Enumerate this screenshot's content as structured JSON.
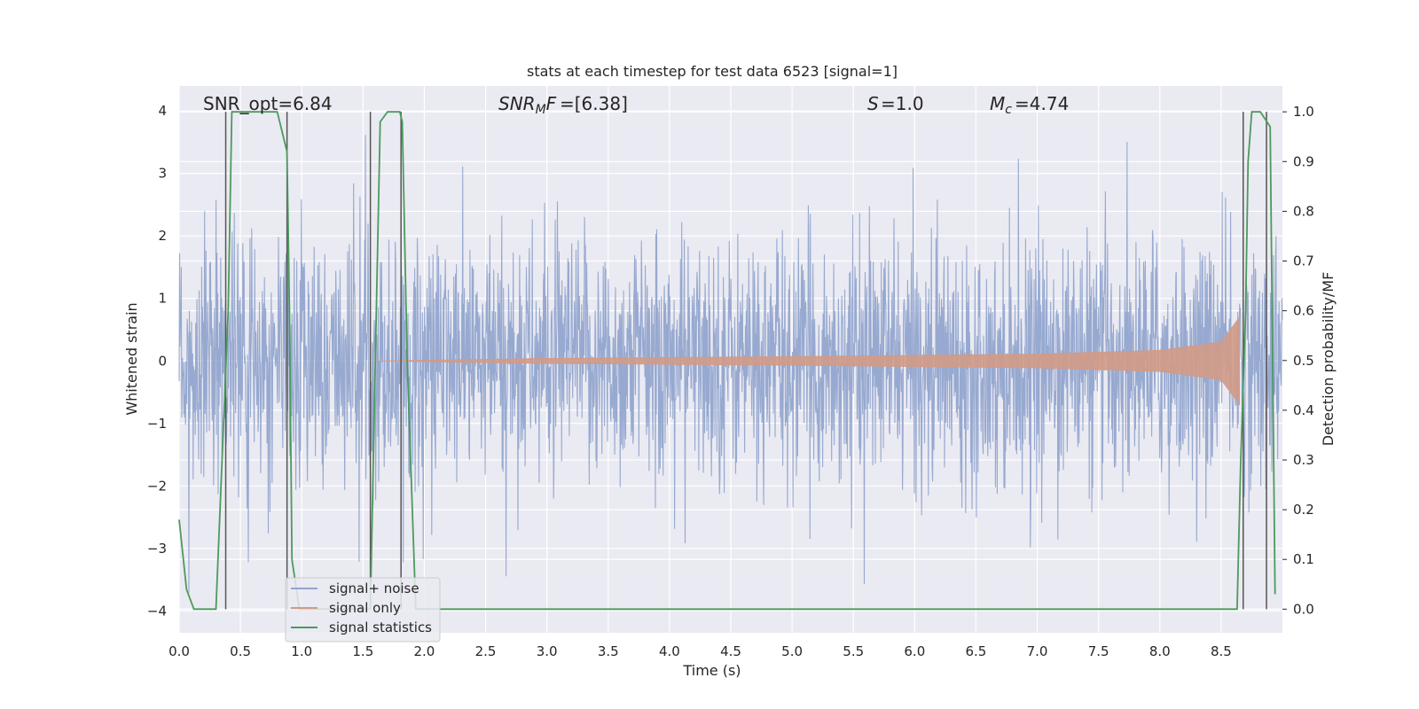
{
  "chart_data": {
    "type": "line",
    "title": "stats at each timestep for test data 6523 [signal=1]",
    "xlabel": "Time (s)",
    "ylabel": "Whitened strain",
    "y2label": "Detection probability/MF",
    "xlim": [
      0.0,
      9.0
    ],
    "ylim": [
      -4.35,
      4.4
    ],
    "y2lim": [
      -0.0475,
      1.052
    ],
    "xticks": [
      "0.0",
      "0.5",
      "1.0",
      "1.5",
      "2.0",
      "2.5",
      "3.0",
      "3.5",
      "4.0",
      "4.5",
      "5.0",
      "5.5",
      "6.0",
      "6.5",
      "7.0",
      "7.5",
      "8.0",
      "8.5"
    ],
    "yticks": [
      "4",
      "3",
      "2",
      "1",
      "0",
      "−1",
      "−2",
      "−3",
      "−4"
    ],
    "y2ticks": [
      "1.0",
      "0.9",
      "0.8",
      "0.7",
      "0.6",
      "0.5",
      "0.4",
      "0.3",
      "0.2",
      "0.1",
      "0.0"
    ],
    "grid": true,
    "legend_position": "lower-left",
    "annotations": {
      "snr_opt": "SNR_opt=6.84",
      "snr_mf": "=[6.38]",
      "s": "=1.0",
      "mc": "=4.74"
    },
    "series": [
      {
        "name": "signal+ noise",
        "color": "#92a5ce",
        "axis": "left",
        "note": "whitened noisy strain, approximately gaussian, envelope about ±1.6 with spikes to ±4",
        "amplitude_envelope": 1.6
      },
      {
        "name": "signal only",
        "color": "#d19a86",
        "axis": "left",
        "note": "chirp envelope grows from ~0 at 1.6 s to ~0.7 at 8.65 s",
        "envelope": {
          "x": [
            1.6,
            3.0,
            5.0,
            7.0,
            8.0,
            8.5,
            8.65
          ],
          "y": [
            0.0,
            0.04,
            0.07,
            0.11,
            0.17,
            0.3,
            0.7
          ]
        }
      },
      {
        "name": "signal statistics",
        "color": "#4c9a5c",
        "axis": "right",
        "x": [
          0.0,
          0.06,
          0.12,
          0.3,
          0.4,
          0.43,
          0.8,
          0.88,
          0.9,
          0.92,
          0.98,
          1.56,
          1.6,
          1.64,
          1.7,
          1.8,
          1.82,
          1.86,
          1.93,
          8.63,
          8.66,
          8.7,
          8.72,
          8.75,
          8.82,
          8.9,
          8.94
        ],
        "y": [
          0.18,
          0.04,
          0.0,
          0.0,
          0.6,
          1.0,
          1.0,
          0.92,
          0.6,
          0.1,
          0.0,
          0.0,
          0.5,
          0.98,
          1.0,
          1.0,
          0.98,
          0.5,
          0.0,
          0.0,
          0.3,
          0.6,
          0.9,
          1.0,
          1.0,
          0.97,
          0.03
        ]
      }
    ],
    "vertical_lines": {
      "color": "#555555",
      "x": [
        0.38,
        0.88,
        1.56,
        1.81,
        8.68,
        8.87
      ]
    }
  }
}
